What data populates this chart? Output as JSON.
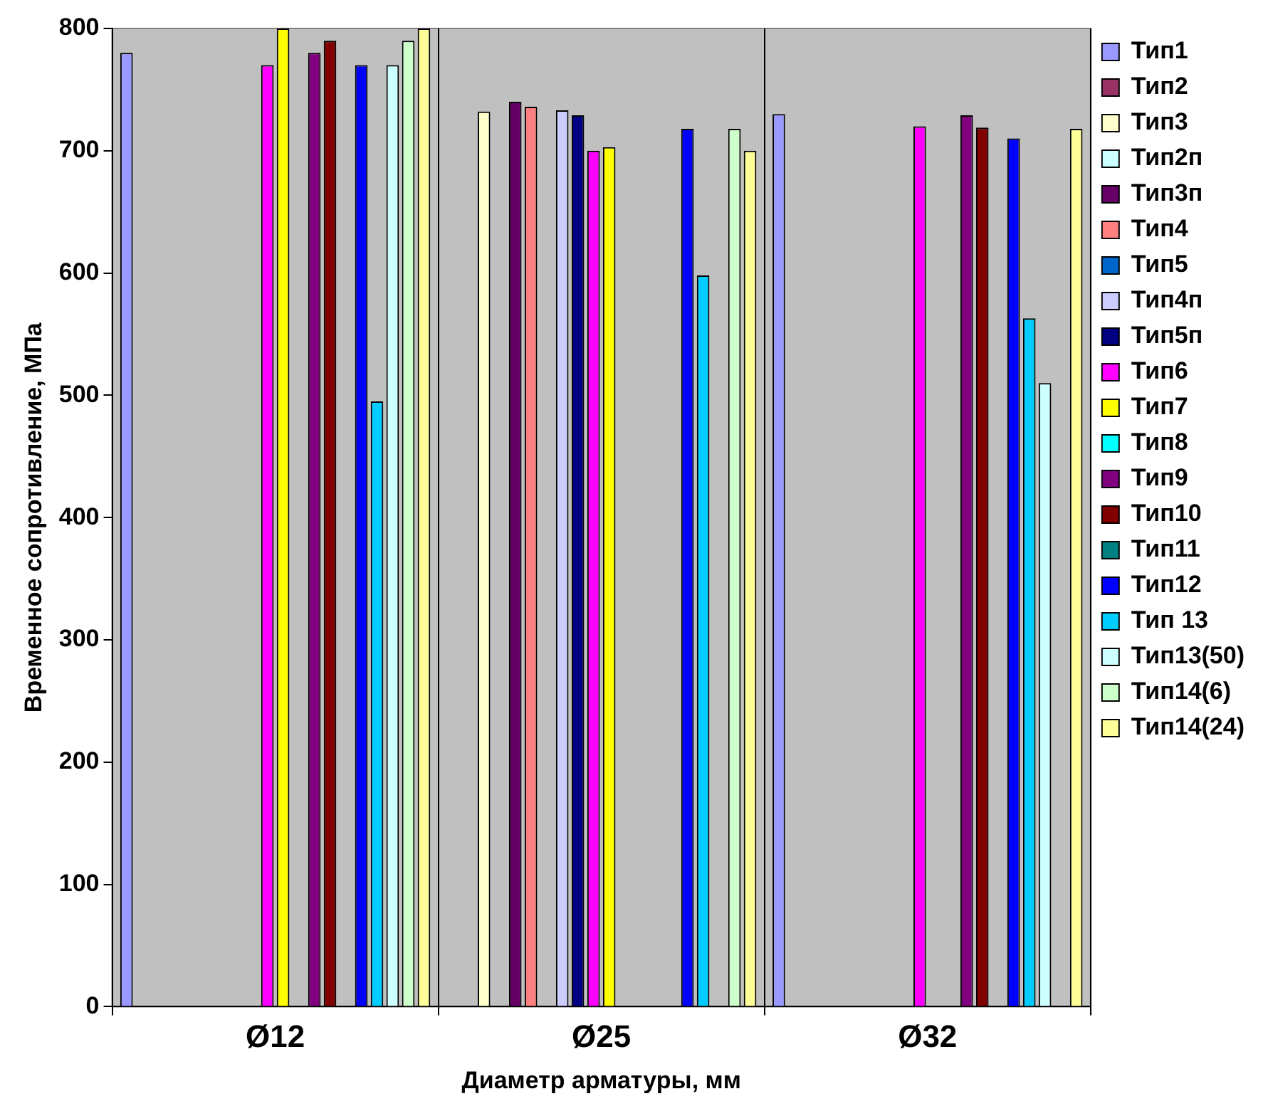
{
  "chart_data": {
    "type": "bar",
    "xlabel": "Диаметр арматуры, мм",
    "ylabel": "Временное сопротивление, МПа",
    "categories": [
      "Ø12",
      "Ø25",
      "Ø32"
    ],
    "ylim": [
      0,
      800
    ],
    "yticks": [
      0,
      100,
      200,
      300,
      400,
      500,
      600,
      700,
      800
    ],
    "grid": "x",
    "legend": "right",
    "series": [
      {
        "name": "Тип1",
        "color": "#9999ff",
        "values": [
          780,
          null,
          730
        ]
      },
      {
        "name": "Тип2",
        "color": "#993366",
        "values": [
          null,
          null,
          null
        ]
      },
      {
        "name": "Тип3",
        "color": "#ffffcc",
        "values": [
          null,
          732,
          null
        ]
      },
      {
        "name": "Тип2п",
        "color": "#ccffff",
        "values": [
          null,
          null,
          null
        ]
      },
      {
        "name": "Тип3п",
        "color": "#660066",
        "values": [
          null,
          740,
          null
        ]
      },
      {
        "name": "Тип4",
        "color": "#ff8080",
        "values": [
          null,
          736,
          null
        ]
      },
      {
        "name": "Тип5",
        "color": "#0066cc",
        "values": [
          null,
          null,
          null
        ]
      },
      {
        "name": "Тип4п",
        "color": "#ccccff",
        "values": [
          null,
          733,
          null
        ]
      },
      {
        "name": "Тип5п",
        "color": "#000080",
        "values": [
          null,
          729,
          null
        ]
      },
      {
        "name": "Тип6",
        "color": "#ff00ff",
        "values": [
          770,
          700,
          720
        ]
      },
      {
        "name": "Тип7",
        "color": "#ffff00",
        "values": [
          800,
          703,
          null
        ]
      },
      {
        "name": "Тип8",
        "color": "#00ffff",
        "values": [
          null,
          null,
          null
        ]
      },
      {
        "name": "Тип9",
        "color": "#800080",
        "values": [
          780,
          null,
          729
        ]
      },
      {
        "name": "Тип10",
        "color": "#800000",
        "values": [
          790,
          null,
          719
        ]
      },
      {
        "name": "Тип11",
        "color": "#008080",
        "values": [
          null,
          null,
          null
        ]
      },
      {
        "name": "Тип12",
        "color": "#0000ff",
        "values": [
          770,
          718,
          710
        ]
      },
      {
        "name": "Тип 13",
        "color": "#00ccff",
        "values": [
          495,
          598,
          563
        ]
      },
      {
        "name": "Тип13(50)",
        "color": "#ccffff",
        "values": [
          770,
          null,
          510
        ]
      },
      {
        "name": "Тип14(6)",
        "color": "#ccffcc",
        "values": [
          790,
          718,
          null
        ]
      },
      {
        "name": "Тип14(24)",
        "color": "#ffff99",
        "values": [
          800,
          700,
          718
        ]
      }
    ]
  }
}
